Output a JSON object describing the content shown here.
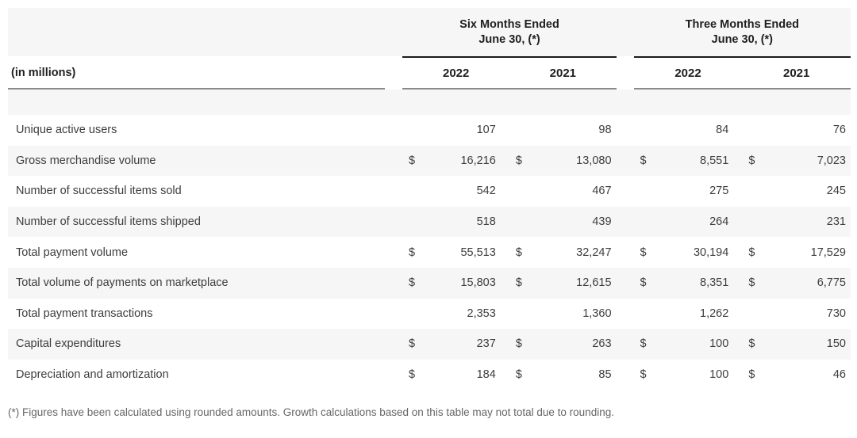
{
  "chart_data": {
    "type": "table",
    "unit_label": "(in millions)",
    "currency_symbol": "$",
    "col_groups": [
      {
        "title_line1": "Six Months Ended",
        "title_line2": "June 30, (*)",
        "years": [
          "2022",
          "2021"
        ]
      },
      {
        "title_line1": "Three Months Ended",
        "title_line2": "June 30, (*)",
        "years": [
          "2022",
          "2021"
        ]
      }
    ],
    "columns": [
      "Six Months 2022",
      "Six Months 2021",
      "Three Months 2022",
      "Three Months 2021"
    ],
    "rows": [
      {
        "label": "Unique active users",
        "currency": false,
        "values": [
          "107",
          "98",
          "84",
          "76"
        ]
      },
      {
        "label": "Gross merchandise volume",
        "currency": true,
        "values": [
          "16,216",
          "13,080",
          "8,551",
          "7,023"
        ]
      },
      {
        "label": "Number of successful items sold",
        "currency": false,
        "values": [
          "542",
          "467",
          "275",
          "245"
        ]
      },
      {
        "label": "Number of successful items shipped",
        "currency": false,
        "values": [
          "518",
          "439",
          "264",
          "231"
        ]
      },
      {
        "label": "Total payment volume",
        "currency": true,
        "values": [
          "55,513",
          "32,247",
          "30,194",
          "17,529"
        ]
      },
      {
        "label": "Total volume of payments on marketplace",
        "currency": true,
        "values": [
          "15,803",
          "12,615",
          "8,351",
          "6,775"
        ]
      },
      {
        "label": "Total payment transactions",
        "currency": false,
        "values": [
          "2,353",
          "1,360",
          "1,262",
          "730"
        ]
      },
      {
        "label": "Capital expenditures",
        "currency": true,
        "values": [
          "237",
          "263",
          "100",
          "150"
        ]
      },
      {
        "label": "Depreciation and amortization",
        "currency": true,
        "values": [
          "184",
          "85",
          "100",
          "46"
        ]
      }
    ],
    "footnote": "(*) Figures have been calculated using rounded amounts. Growth calculations based on this table may not total due to rounding."
  },
  "colors": {
    "stripe": "#f6f6f7",
    "rule_dark": "#1b1b1b",
    "rule_gray": "#8a8a8a",
    "text": "#3d3d3d",
    "heading": "#1f1f1f",
    "footnote_text": "#666666"
  }
}
